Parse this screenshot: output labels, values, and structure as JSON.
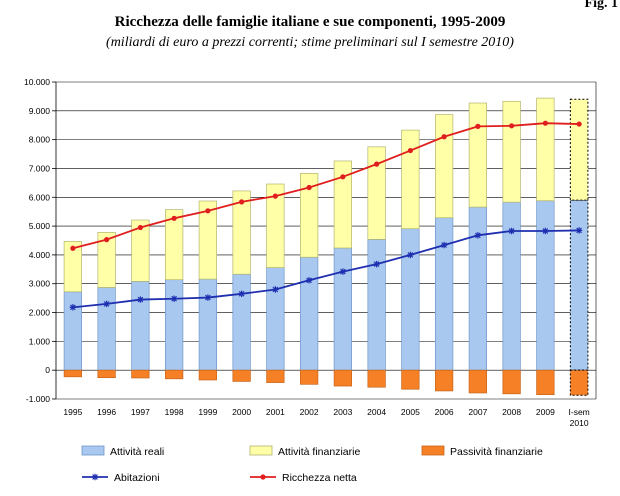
{
  "figure_label": "Fig. 1",
  "chart_data": {
    "type": "bar",
    "title": "Ricchezza delle famiglie italiane e sue componenti, 1995-2009",
    "subtitle": "(miliardi di euro a prezzi correnti; stime preliminari sul I semestre 2010)",
    "categories": [
      "1995",
      "1996",
      "1997",
      "1998",
      "1999",
      "2000",
      "2001",
      "2002",
      "2003",
      "2004",
      "2005",
      "2006",
      "2007",
      "2008",
      "2009",
      "I-sem 2010"
    ],
    "category_labels": [
      [
        "1995"
      ],
      [
        "1996"
      ],
      [
        "1997"
      ],
      [
        "1998"
      ],
      [
        "1999"
      ],
      [
        "2000"
      ],
      [
        "2001"
      ],
      [
        "2002"
      ],
      [
        "2003"
      ],
      [
        "2004"
      ],
      [
        "2005"
      ],
      [
        "2006"
      ],
      [
        "2007"
      ],
      [
        "2008"
      ],
      [
        "2009"
      ],
      [
        "I-sem",
        "2010"
      ]
    ],
    "ylim": [
      -1000,
      10000
    ],
    "yticks": [
      -1000,
      0,
      1000,
      2000,
      3000,
      4000,
      5000,
      6000,
      7000,
      8000,
      9000,
      10000
    ],
    "ytick_labels": [
      "-1.000",
      "0",
      "1.000",
      "2.000",
      "3.000",
      "4.000",
      "5.000",
      "6.000",
      "7.000",
      "8.000",
      "9.000",
      "10.000"
    ],
    "grid": true,
    "legend_position": "bottom",
    "highlighted_category": "I-sem 2010",
    "series": [
      {
        "name": "Attività reali",
        "kind": "stacked-bar",
        "color": "#a8c8f0",
        "border": "#6f96c8",
        "values": [
          2720,
          2870,
          3080,
          3140,
          3160,
          3330,
          3560,
          3920,
          4240,
          4540,
          4910,
          5290,
          5660,
          5830,
          5880,
          5900
        ]
      },
      {
        "name": "Attività finanziarie",
        "kind": "stacked-bar",
        "color": "#ffffa8",
        "border": "#b4b46e",
        "values": [
          1750,
          1910,
          2130,
          2430,
          2710,
          2890,
          2900,
          2910,
          3020,
          3210,
          3420,
          3580,
          3610,
          3500,
          3560,
          3500
        ]
      },
      {
        "name": "Passività finanziarie",
        "kind": "bar-negative",
        "color": "#f58025",
        "border": "#c8641a",
        "values": [
          -230,
          -260,
          -270,
          -300,
          -340,
          -390,
          -430,
          -490,
          -550,
          -590,
          -660,
          -720,
          -790,
          -820,
          -850,
          -870
        ]
      },
      {
        "name": "Abitazioni",
        "kind": "line",
        "color": "#1f2fb0",
        "marker": "star",
        "values": [
          2180,
          2300,
          2450,
          2480,
          2520,
          2650,
          2800,
          3120,
          3420,
          3680,
          4000,
          4340,
          4680,
          4830,
          4830,
          4850
        ]
      },
      {
        "name": "Ricchezza netta",
        "kind": "line",
        "color": "#e01e1e",
        "marker": "circle",
        "values": [
          4230,
          4530,
          4950,
          5270,
          5530,
          5840,
          6040,
          6340,
          6710,
          7150,
          7620,
          8100,
          8460,
          8480,
          8570,
          8540
        ]
      }
    ]
  }
}
